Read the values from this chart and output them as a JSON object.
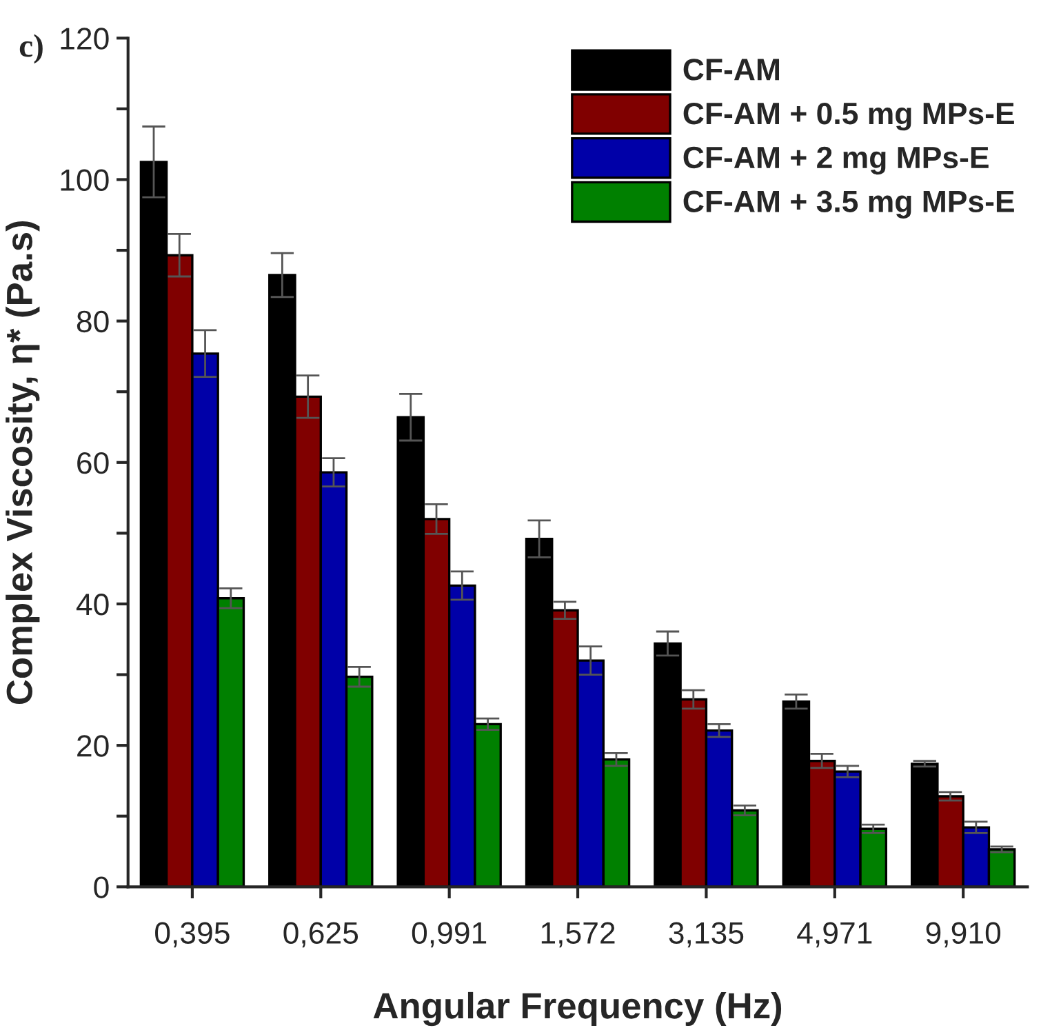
{
  "chart_data": {
    "type": "bar",
    "xlabel": "Angular Frequency (Hz)",
    "ylabel": "Complex Viscosity, η* (Pa.s)",
    "annotations": [
      "c)"
    ],
    "categories": [
      "0,395",
      "0,625",
      "0,991",
      "1,572",
      "3,135",
      "4,971",
      "9,910"
    ],
    "series": [
      {
        "name": "CF-AM",
        "color": "#000000",
        "values": [
          102.5,
          86.5,
          66.4,
          49.2,
          34.4,
          26.2,
          17.4
        ],
        "errors": [
          5,
          3.1,
          3.3,
          2.6,
          1.7,
          1,
          0.4
        ]
      },
      {
        "name": "CF-AM + 0.5 mg MPs-E",
        "color": "#800000",
        "values": [
          89.3,
          69.3,
          52,
          39.1,
          26.5,
          17.8,
          12.8
        ],
        "errors": [
          3,
          3,
          2.1,
          1.2,
          1.3,
          1,
          0.6
        ]
      },
      {
        "name": "CF-AM + 2 mg MPs-E",
        "color": "#0000a8",
        "values": [
          75.4,
          58.6,
          42.6,
          32,
          22.1,
          16.3,
          8.4
        ],
        "errors": [
          3.3,
          2,
          2,
          2,
          0.9,
          0.8,
          0.8
        ]
      },
      {
        "name": "CF-AM + 3.5 mg MPs-E",
        "color": "#008000",
        "values": [
          40.8,
          29.7,
          23,
          18,
          10.8,
          8.2,
          5.3
        ],
        "errors": [
          1.4,
          1.4,
          0.8,
          0.9,
          0.7,
          0.6,
          0.4
        ]
      }
    ],
    "ylim": [
      0,
      120
    ],
    "yticks": [
      0,
      {
        "value": 10,
        "label": null
      },
      20,
      {
        "value": 30,
        "label": null
      },
      40,
      {
        "value": 50,
        "label": null
      },
      60,
      {
        "value": 70,
        "label": null
      },
      80,
      {
        "value": 90,
        "label": null
      },
      100,
      {
        "value": 110,
        "label": null
      },
      120
    ],
    "grid": false,
    "legend": "top right"
  }
}
